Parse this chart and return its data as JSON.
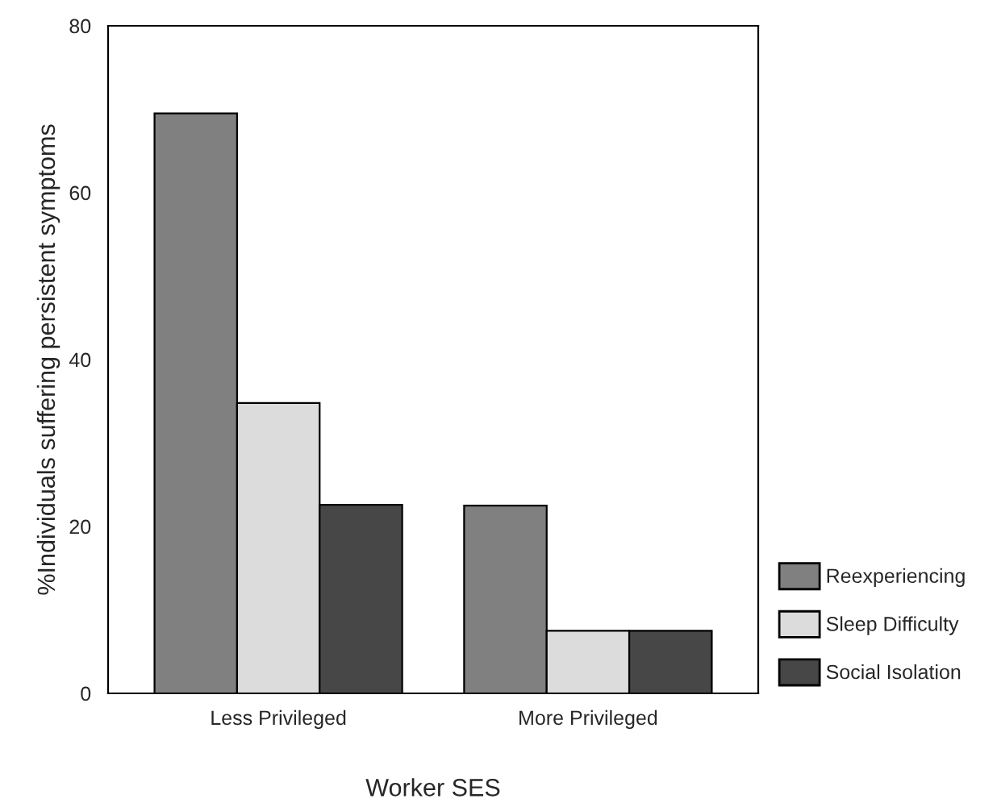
{
  "chart_data": {
    "type": "bar",
    "xlabel": "Worker SES",
    "ylabel": "%Individuals suffering persistent symptoms",
    "categories": [
      "Less Privileged",
      "More Privileged"
    ],
    "series": [
      {
        "name": "Reexperiencing",
        "color": "#808080",
        "values": [
          69.5,
          22.5
        ]
      },
      {
        "name": "Sleep Difficulty",
        "color": "#dcdcdc",
        "values": [
          34.8,
          7.5
        ]
      },
      {
        "name": "Social Isolation",
        "color": "#474747",
        "values": [
          22.6,
          7.5
        ]
      }
    ],
    "ylim": [
      0,
      80
    ],
    "yticks": [
      0,
      20,
      40,
      60,
      80
    ],
    "grid": false,
    "legend": "right"
  }
}
